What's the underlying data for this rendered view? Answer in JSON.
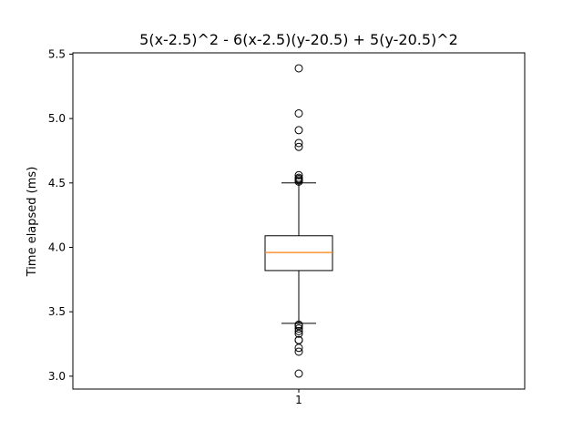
{
  "chart_data": {
    "type": "box",
    "title": "5(x-2.5)^2 - 6(x-2.5)(y-20.5) + 5(y-20.5)^2",
    "xlabel": "",
    "ylabel": "Time elapsed (ms)",
    "ylim": [
      2.9,
      5.51
    ],
    "yticks": [
      3.0,
      3.5,
      4.0,
      4.5,
      5.0,
      5.5
    ],
    "ytick_labels": [
      "3.0",
      "3.5",
      "4.0",
      "4.5",
      "5.0",
      "5.5"
    ],
    "categories": [
      "1"
    ],
    "grid": false,
    "colors": {
      "box": "#000000",
      "median": "#ff7f0e",
      "flier": "#000000"
    },
    "boxes": [
      {
        "label": "1",
        "whisker_low": 3.41,
        "q1": 3.82,
        "median": 3.96,
        "q3": 4.09,
        "whisker_high": 4.5,
        "fliers": [
          3.02,
          3.19,
          3.22,
          3.28,
          3.28,
          3.33,
          3.35,
          3.37,
          3.39,
          3.4,
          4.51,
          4.52,
          4.53,
          4.54,
          4.56,
          4.78,
          4.81,
          4.91,
          5.04,
          5.39
        ]
      }
    ]
  }
}
